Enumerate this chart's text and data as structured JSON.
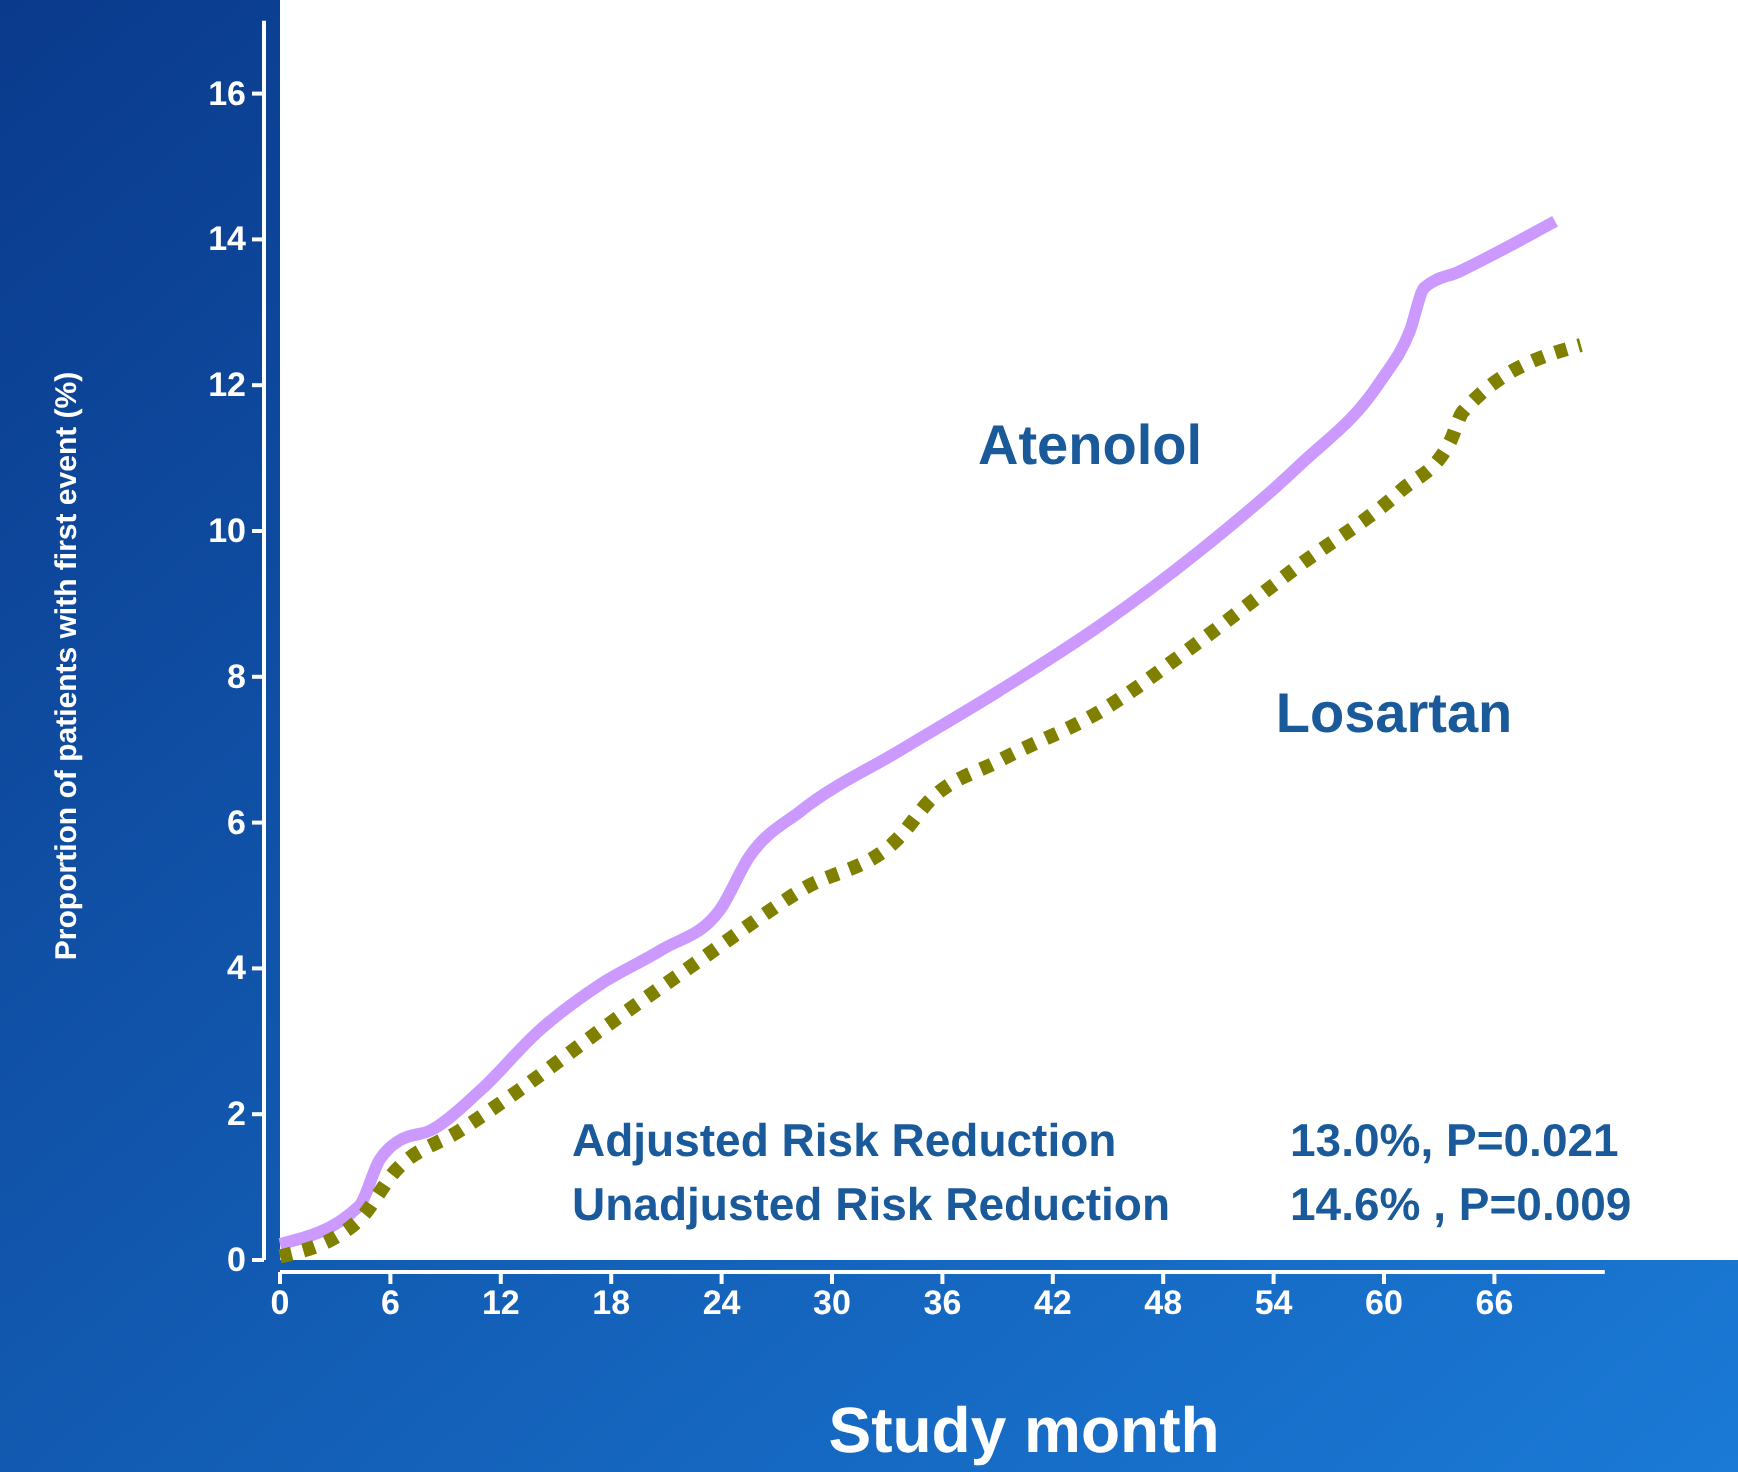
{
  "chart_data": {
    "type": "line",
    "xlabel": "Study month",
    "ylabel": "Proportion of patients with first event (%)",
    "xlim": [
      0,
      72
    ],
    "ylim": [
      0,
      17
    ],
    "xticks": [
      0,
      6,
      12,
      18,
      24,
      30,
      36,
      42,
      48,
      54,
      60,
      66
    ],
    "yticks": [
      0,
      2,
      4,
      6,
      8,
      10,
      12,
      14,
      16
    ],
    "grid": false,
    "series": [
      {
        "name": "Atenolol",
        "color": "#cc99ff",
        "line_style": "solid",
        "x": [
          0,
          4.3,
          5.4,
          6.5,
          8.2,
          10.9,
          14.1,
          17.4,
          20.7,
          23.9,
          25.5,
          28.3,
          33.7,
          39.1,
          44.6,
          50,
          55.4,
          59.8,
          61.4,
          62.2,
          64.1,
          69.3
        ],
        "values": [
          0.22,
          0.74,
          1.37,
          1.64,
          1.78,
          2.33,
          3.15,
          3.78,
          4.25,
          4.8,
          5.53,
          6.16,
          6.99,
          7.81,
          8.71,
          9.73,
          10.9,
          12.05,
          12.74,
          13.34,
          13.56,
          14.25
        ]
      },
      {
        "name": "Losartan",
        "color": "#808000",
        "line_style": "dotted",
        "x": [
          0,
          4.3,
          6.3,
          9.8,
          13,
          17.4,
          22.8,
          28.3,
          33.7,
          35.3,
          39.1,
          44.6,
          50,
          55.4,
          60.9,
          63.6,
          64.3,
          70.7
        ],
        "values": [
          0.05,
          0.55,
          1.23,
          1.78,
          2.33,
          3.15,
          4.11,
          5.07,
          5.81,
          6.3,
          6.85,
          7.53,
          8.49,
          9.53,
          10.55,
          11.23,
          11.64,
          12.55
        ]
      }
    ],
    "annotations": [
      "Adjusted Risk Reduction",
      "13.0%, P=0.021",
      "Unadjusted Risk Reduction",
      "14.6% , P=0.009"
    ]
  }
}
